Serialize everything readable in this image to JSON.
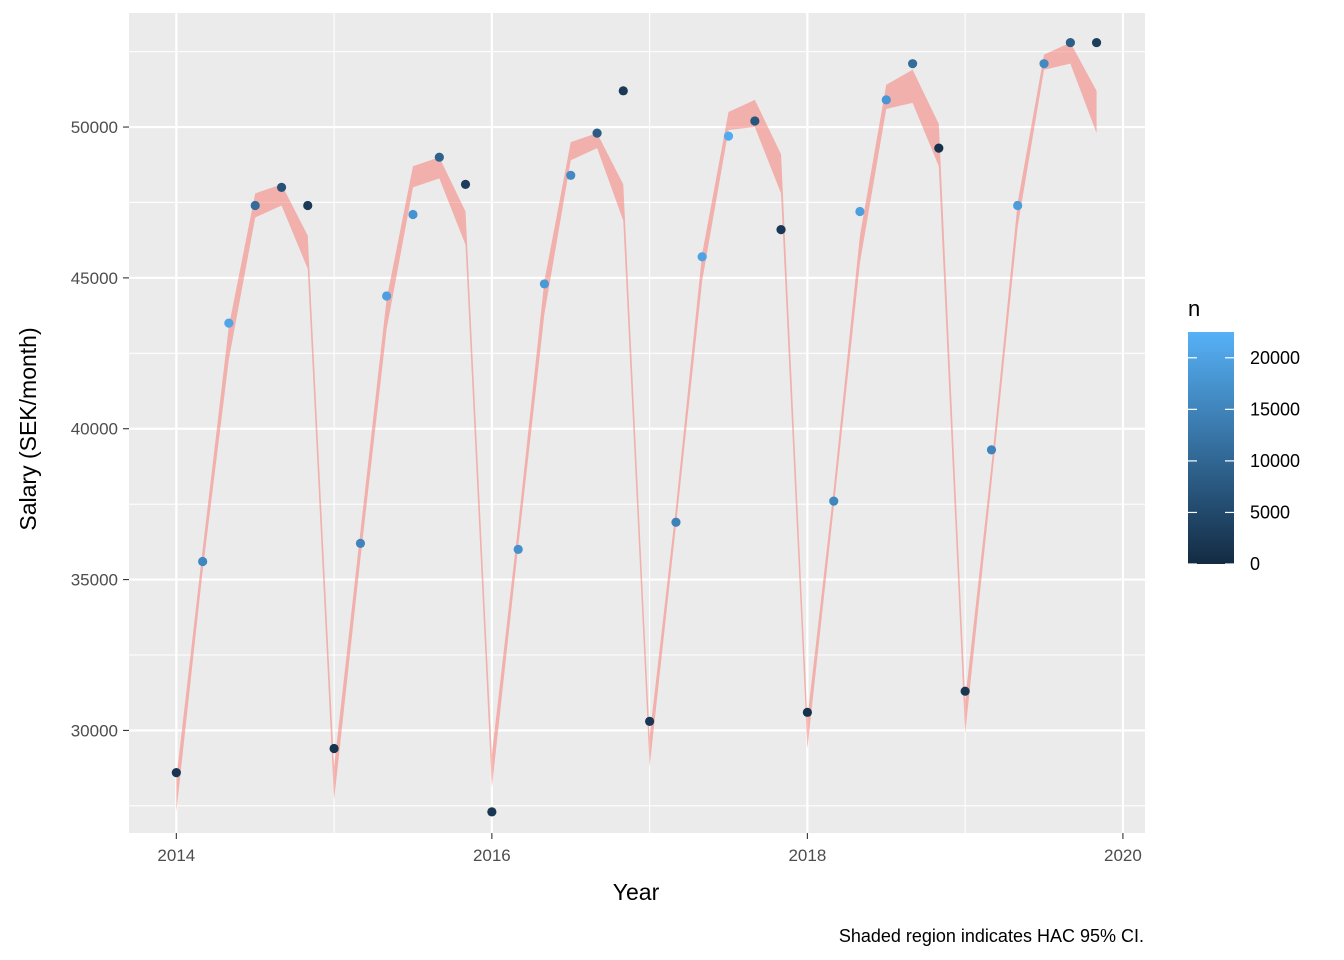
{
  "chart_data": {
    "type": "scatter",
    "xlabel": "Year",
    "ylabel": "Salary (SEK/month)",
    "caption": "Shaded region indicates HAC 95% CI.",
    "xlim": [
      2013.7,
      2020.14
    ],
    "ylim": [
      26600,
      53780
    ],
    "x_ticks": [
      2014,
      2016,
      2018,
      2020
    ],
    "x_tick_labels": [
      "2014",
      "2016",
      "2018",
      "2020"
    ],
    "y_ticks": [
      30000,
      35000,
      40000,
      45000,
      50000
    ],
    "y_tick_labels": [
      "30000",
      "35000",
      "40000",
      "45000",
      "50000"
    ],
    "grid": true,
    "legend": {
      "title": "n",
      "placement": "right",
      "type": "colorbar",
      "range": [
        0,
        22500
      ],
      "breaks": [
        0,
        5000,
        10000,
        15000,
        20000
      ],
      "break_labels": [
        "0",
        "5000",
        "10000",
        "15000",
        "20000"
      ],
      "low_color": "#132b43",
      "high_color": "#56b1f7"
    },
    "ribbon": {
      "color": "#f8766d",
      "opacity": 0.5,
      "x": [
        2014.0,
        2014.167,
        2014.333,
        2014.5,
        2014.667,
        2014.833,
        2015.0,
        2015.167,
        2015.333,
        2015.5,
        2015.667,
        2015.833,
        2016.0,
        2016.167,
        2016.333,
        2016.5,
        2016.667,
        2016.833,
        2017.0,
        2017.167,
        2017.333,
        2017.5,
        2017.667,
        2017.833,
        2018.0,
        2018.167,
        2018.333,
        2018.5,
        2018.667,
        2018.833,
        2019.0,
        2019.167,
        2019.333,
        2019.5,
        2019.667,
        2019.833
      ],
      "lower": [
        27300,
        35300,
        42300,
        47000,
        47400,
        45300,
        27700,
        35700,
        43300,
        48000,
        48300,
        46100,
        28100,
        36100,
        43800,
        48900,
        49300,
        46900,
        28800,
        36800,
        44900,
        49900,
        50000,
        47800,
        29400,
        37400,
        45500,
        50600,
        50800,
        48700,
        29900,
        38200,
        46700,
        51900,
        52100,
        49800
      ],
      "upper": [
        28400,
        36000,
        43400,
        47800,
        48100,
        46400,
        28800,
        36600,
        44300,
        48700,
        49000,
        47200,
        29200,
        36800,
        44900,
        49500,
        49800,
        48100,
        29800,
        37400,
        45800,
        50500,
        50900,
        49100,
        30400,
        38000,
        46400,
        51400,
        51900,
        50100,
        31000,
        38800,
        47500,
        52400,
        52800,
        51200
      ]
    },
    "series": [
      {
        "x": [
          2014.0,
          2014.167,
          2014.333,
          2014.5,
          2014.667,
          2014.833,
          2015.0,
          2015.167,
          2015.333,
          2015.5,
          2015.667,
          2015.833,
          2016.0,
          2016.167,
          2016.333,
          2016.5,
          2016.667,
          2016.833,
          2017.0,
          2017.167,
          2017.333,
          2017.5,
          2017.667,
          2017.833,
          2018.0,
          2018.167,
          2018.333,
          2018.5,
          2018.667,
          2018.833,
          2019.0,
          2019.167,
          2019.333,
          2019.5,
          2019.667,
          2019.833
        ],
        "y": [
          28600,
          35600,
          43500,
          47400,
          48000,
          47400,
          29400,
          36200,
          44400,
          47100,
          49000,
          48100,
          27300,
          36000,
          44800,
          48400,
          49800,
          51200,
          30300,
          36900,
          45700,
          49700,
          50200,
          46600,
          30600,
          37600,
          47200,
          50900,
          52100,
          49300,
          31300,
          39300,
          47400,
          52100,
          52800,
          52800
        ],
        "n": [
          1800,
          15500,
          20500,
          11000,
          6500,
          2500,
          1500,
          15000,
          19500,
          17500,
          9000,
          3000,
          1800,
          17000,
          18500,
          16000,
          8000,
          2500,
          2200,
          14500,
          20000,
          21500,
          7000,
          2200,
          1200,
          15500,
          19500,
          18000,
          11000,
          1000,
          2000,
          15000,
          19000,
          16000,
          8500,
          3000
        ]
      }
    ]
  }
}
